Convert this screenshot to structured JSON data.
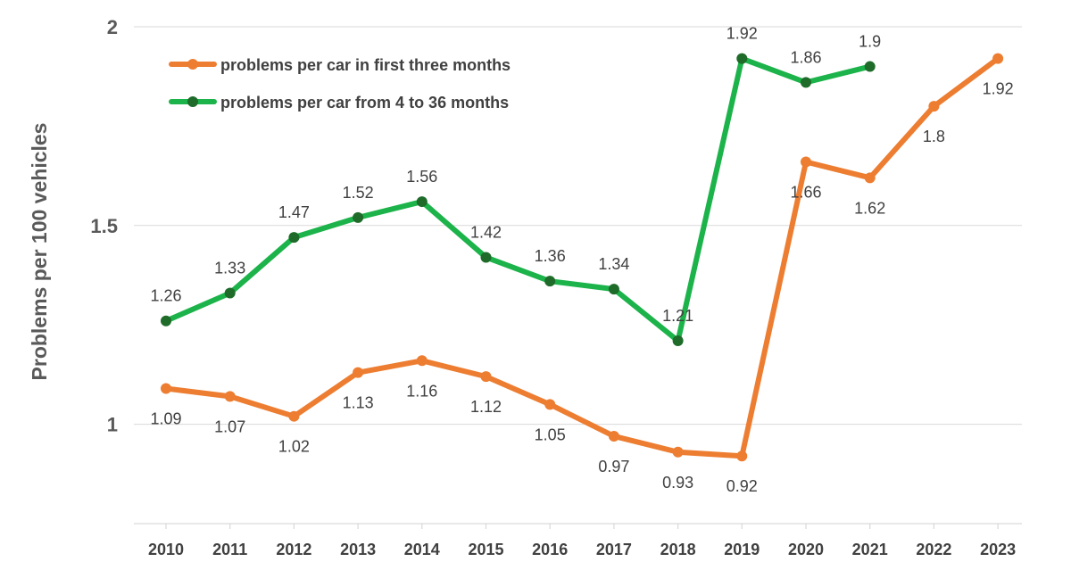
{
  "chart_data": {
    "type": "line",
    "title": "",
    "xlabel": "",
    "ylabel": "Problems per 100 vehicles",
    "categories": [
      "2010",
      "2011",
      "2012",
      "2013",
      "2014",
      "2015",
      "2016",
      "2017",
      "2018",
      "2019",
      "2020",
      "2021",
      "2022",
      "2023"
    ],
    "y_ticks": [
      1,
      1.5,
      2
    ],
    "y_tick_labels": [
      "1",
      "1.5",
      "2"
    ],
    "ylim": [
      0.75,
      2.0
    ],
    "grid": "horizontal",
    "legend_position": "top-left",
    "series": [
      {
        "name": "problems per car in first three months",
        "color": "#ED7D31",
        "marker_color": "#ED7D31",
        "label_position": "below",
        "values": [
          1.09,
          1.07,
          1.02,
          1.13,
          1.16,
          1.12,
          1.05,
          0.97,
          0.93,
          0.92,
          1.66,
          1.62,
          1.8,
          1.92
        ],
        "labels": [
          "1.09",
          "1.07",
          "1.02",
          "1.13",
          "1.16",
          "1.12",
          "1.05",
          "0.97",
          "0.93",
          "0.92",
          "1.66",
          "1.62",
          "1.8",
          "1.92"
        ]
      },
      {
        "name": "problems per car from 4 to 36 months",
        "color": "#1CB34A",
        "marker_color": "#1E6B2A",
        "label_position": "above",
        "values": [
          1.26,
          1.33,
          1.47,
          1.52,
          1.56,
          1.42,
          1.36,
          1.34,
          1.21,
          1.92,
          1.86,
          1.9,
          null,
          null
        ],
        "labels": [
          "1.26",
          "1.33",
          "1.47",
          "1.52",
          "1.56",
          "1.42",
          "1.36",
          "1.34",
          "1.21",
          "1.92",
          "1.86",
          "1.9",
          null,
          null
        ]
      }
    ]
  }
}
